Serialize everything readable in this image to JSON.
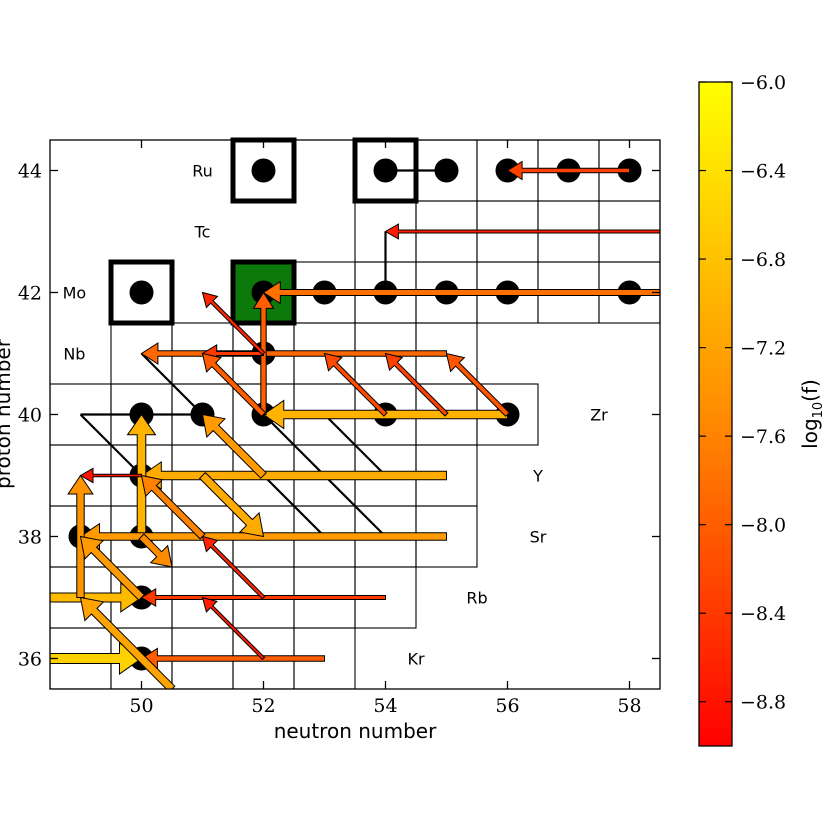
{
  "chart_data": {
    "type": "network",
    "xlabel": "neutron number",
    "ylabel": "proton number",
    "xlim": [
      48.5,
      58.5
    ],
    "ylim": [
      35.5,
      44.5
    ],
    "xticks": [
      50,
      52,
      54,
      56,
      58
    ],
    "yticks": [
      36,
      38,
      40,
      42,
      44
    ],
    "colorbar": {
      "label_base": "log",
      "label_sub": "10",
      "label_rest": "(f)",
      "range": [
        -9.0,
        -6.0
      ],
      "ticks": [
        -6.0,
        -6.4,
        -6.8,
        -7.2,
        -7.6,
        -8.0,
        -8.4,
        -8.8
      ],
      "tick_labels": [
        "−6.0",
        "−6.4",
        "−6.8",
        "−7.2",
        "−7.6",
        "−8.0",
        "−8.4",
        "−8.8"
      ],
      "colors": [
        "#ff0000",
        "#ff8c00",
        "#ffff00"
      ]
    },
    "elements": [
      {
        "symbol": "Kr",
        "z": 36,
        "n": 54.5
      },
      {
        "symbol": "Rb",
        "z": 37,
        "n": 55.5
      },
      {
        "symbol": "Sr",
        "z": 38,
        "n": 56.5
      },
      {
        "symbol": "Y",
        "z": 39,
        "n": 56.5
      },
      {
        "symbol": "Zr",
        "z": 40,
        "n": 57.5
      },
      {
        "symbol": "Nb",
        "z": 41,
        "n": 48.9
      },
      {
        "symbol": "Mo",
        "z": 42,
        "n": 48.9
      },
      {
        "symbol": "Tc",
        "z": 43,
        "n": 51
      },
      {
        "symbol": "Ru",
        "z": 44,
        "n": 51
      }
    ],
    "rows": [
      {
        "z": 36,
        "n_min": 48.5,
        "n_max": 53
      },
      {
        "z": 37,
        "n_min": 48.5,
        "n_max": 54
      },
      {
        "z": 38,
        "n_min": 48.5,
        "n_max": 55
      },
      {
        "z": 39,
        "n_min": 48.5,
        "n_max": 55
      },
      {
        "z": 40,
        "n_min": 48.5,
        "n_max": 56
      },
      {
        "z": 41,
        "n_min": 50,
        "n_max": 55
      },
      {
        "z": 42,
        "n_min": 52,
        "n_max": 58
      },
      {
        "z": 43,
        "n_min": 54,
        "n_max": 58
      },
      {
        "z": 44,
        "n_min": 55,
        "n_max": 58
      }
    ],
    "stable_isotopes": [
      {
        "n": 50,
        "z": 36
      },
      {
        "n": 50,
        "z": 37
      },
      {
        "n": 49,
        "z": 38
      },
      {
        "n": 50,
        "z": 38
      },
      {
        "n": 50,
        "z": 39
      },
      {
        "n": 50,
        "z": 40
      },
      {
        "n": 51,
        "z": 40
      },
      {
        "n": 52,
        "z": 40
      },
      {
        "n": 54,
        "z": 40
      },
      {
        "n": 56,
        "z": 40
      },
      {
        "n": 52,
        "z": 41
      },
      {
        "n": 50,
        "z": 42
      },
      {
        "n": 52,
        "z": 42
      },
      {
        "n": 53,
        "z": 42
      },
      {
        "n": 54,
        "z": 42
      },
      {
        "n": 55,
        "z": 42
      },
      {
        "n": 56,
        "z": 42
      },
      {
        "n": 58,
        "z": 42
      },
      {
        "n": 52,
        "z": 44
      },
      {
        "n": 54,
        "z": 44
      },
      {
        "n": 55,
        "z": 44
      },
      {
        "n": 56,
        "z": 44
      },
      {
        "n": 57,
        "z": 44
      },
      {
        "n": 58,
        "z": 44
      }
    ],
    "p_nuclei_boxed": [
      {
        "n": 50,
        "z": 42
      },
      {
        "n": 52,
        "z": 42
      },
      {
        "n": 52,
        "z": 44
      },
      {
        "n": 54,
        "z": 44
      }
    ],
    "highlighted_nucleus": {
      "n": 52,
      "z": 42,
      "color": "#0b7a0b"
    },
    "plain_links": [
      {
        "from": [
          54,
          44
        ],
        "to": [
          55,
          44
        ]
      },
      {
        "from": [
          49,
          40
        ],
        "to": [
          50,
          40
        ]
      },
      {
        "from": [
          49,
          40
        ],
        "to": [
          50,
          39
        ]
      },
      {
        "from": [
          50,
          41
        ],
        "to": [
          53,
          38
        ]
      },
      {
        "from": [
          50,
          40
        ],
        "to": [
          51,
          40
        ]
      },
      {
        "from": [
          52,
          40
        ],
        "to": [
          54,
          38
        ]
      },
      {
        "from": [
          53,
          40
        ],
        "to": [
          54,
          39
        ]
      },
      {
        "from": [
          54,
          42
        ],
        "to": [
          54,
          43
        ]
      }
    ],
    "flows": [
      {
        "from": [
          58,
          44
        ],
        "to": [
          56,
          44
        ],
        "log_f": -8.3
      },
      {
        "from": [
          58.5,
          43
        ],
        "to": [
          54,
          43
        ],
        "log_f": -8.7
      },
      {
        "from": [
          58.5,
          42
        ],
        "to": [
          52,
          42
        ],
        "log_f": -7.8
      },
      {
        "from": [
          55,
          41
        ],
        "to": [
          50,
          41
        ],
        "log_f": -7.9
      },
      {
        "from": [
          56,
          40
        ],
        "to": [
          52,
          40
        ],
        "log_f": -7.0
      },
      {
        "from": [
          56,
          40
        ],
        "to": [
          55,
          41
        ],
        "log_f": -8.1
      },
      {
        "from": [
          55,
          40
        ],
        "to": [
          54,
          41
        ],
        "log_f": -8.3
      },
      {
        "from": [
          54,
          40
        ],
        "to": [
          53,
          41
        ],
        "log_f": -8.2
      },
      {
        "from": [
          52,
          40
        ],
        "to": [
          52,
          42
        ],
        "log_f": -8.0
      },
      {
        "from": [
          52,
          41
        ],
        "to": [
          51,
          41
        ],
        "log_f": -8.4
      },
      {
        "from": [
          52,
          41
        ],
        "to": [
          51,
          42
        ],
        "log_f": -8.6
      },
      {
        "from": [
          52,
          40
        ],
        "to": [
          51,
          41
        ],
        "log_f": -8.0
      },
      {
        "from": [
          55,
          39
        ],
        "to": [
          50,
          39
        ],
        "log_f": -7.1
      },
      {
        "from": [
          50,
          38
        ],
        "to": [
          50,
          40
        ],
        "log_f": -7.0
      },
      {
        "from": [
          55,
          38
        ],
        "to": [
          49,
          38
        ],
        "log_f": -7.3
      },
      {
        "from": [
          54,
          37
        ],
        "to": [
          50,
          37
        ],
        "log_f": -8.4
      },
      {
        "from": [
          53,
          36
        ],
        "to": [
          50,
          36
        ],
        "log_f": -8.0
      },
      {
        "from": [
          48.5,
          37
        ],
        "to": [
          50,
          37
        ],
        "log_f": -6.9
      },
      {
        "from": [
          48.5,
          36
        ],
        "to": [
          50,
          36
        ],
        "log_f": -6.6
      },
      {
        "from": [
          51,
          39
        ],
        "to": [
          52,
          38
        ],
        "log_f": -7.1
      },
      {
        "from": [
          52,
          37
        ],
        "to": [
          51,
          38
        ],
        "log_f": -8.6
      },
      {
        "from": [
          52,
          36
        ],
        "to": [
          51,
          37
        ],
        "log_f": -8.7
      },
      {
        "from": [
          51,
          38
        ],
        "to": [
          50,
          39
        ],
        "log_f": -7.6
      },
      {
        "from": [
          50.5,
          35.5
        ],
        "to": [
          49,
          37
        ],
        "log_f": -7.2
      },
      {
        "from": [
          49,
          37
        ],
        "to": [
          49,
          39
        ],
        "log_f": -7.4
      },
      {
        "from": [
          50,
          37
        ],
        "to": [
          49,
          38
        ],
        "log_f": -7.3
      },
      {
        "from": [
          50,
          39
        ],
        "to": [
          49,
          39
        ],
        "log_f": -8.8
      },
      {
        "from": [
          50,
          38
        ],
        "to": [
          50.5,
          37.5
        ],
        "log_f": -7.5
      },
      {
        "from": [
          52,
          39
        ],
        "to": [
          51,
          40
        ],
        "log_f": -7.3
      }
    ]
  }
}
